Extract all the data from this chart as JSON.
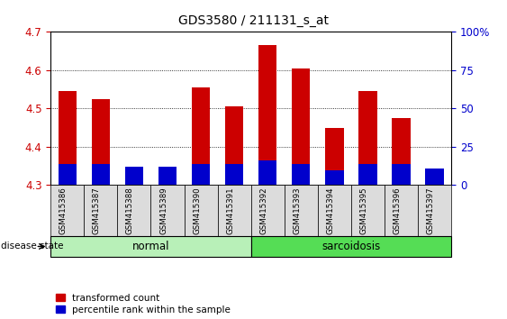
{
  "title": "GDS3580 / 211131_s_at",
  "samples": [
    "GSM415386",
    "GSM415387",
    "GSM415388",
    "GSM415389",
    "GSM415390",
    "GSM415391",
    "GSM415392",
    "GSM415393",
    "GSM415394",
    "GSM415395",
    "GSM415396",
    "GSM415397"
  ],
  "red_values": [
    4.545,
    4.525,
    4.345,
    4.345,
    4.555,
    4.505,
    4.665,
    4.605,
    4.45,
    4.545,
    4.475,
    4.34
  ],
  "blue_values": [
    4.355,
    4.355,
    4.348,
    4.348,
    4.355,
    4.355,
    4.365,
    4.355,
    4.338,
    4.355,
    4.355,
    4.342
  ],
  "ylim_left": [
    4.3,
    4.7
  ],
  "right_ticks": [
    0,
    25,
    50,
    75,
    100
  ],
  "right_tick_labels": [
    "0",
    "25",
    "50",
    "75",
    "100%"
  ],
  "left_ticks": [
    4.3,
    4.4,
    4.5,
    4.6,
    4.7
  ],
  "bar_bottom": 4.3,
  "bar_width": 0.55,
  "red_color": "#cc0000",
  "blue_color": "#0000cc",
  "normal_label": "normal",
  "sarcoidosis_label": "sarcoidosis",
  "disease_state_label": "disease state",
  "legend_red": "transformed count",
  "legend_blue": "percentile rank within the sample",
  "bg_color_plot": "#ffffff",
  "bg_color_tick": "#dcdcdc",
  "group_normal_color": "#b8f0b8",
  "group_sarc_color": "#55dd55",
  "title_fontsize": 10,
  "axis_label_color_left": "#cc0000",
  "axis_label_color_right": "#0000cc"
}
